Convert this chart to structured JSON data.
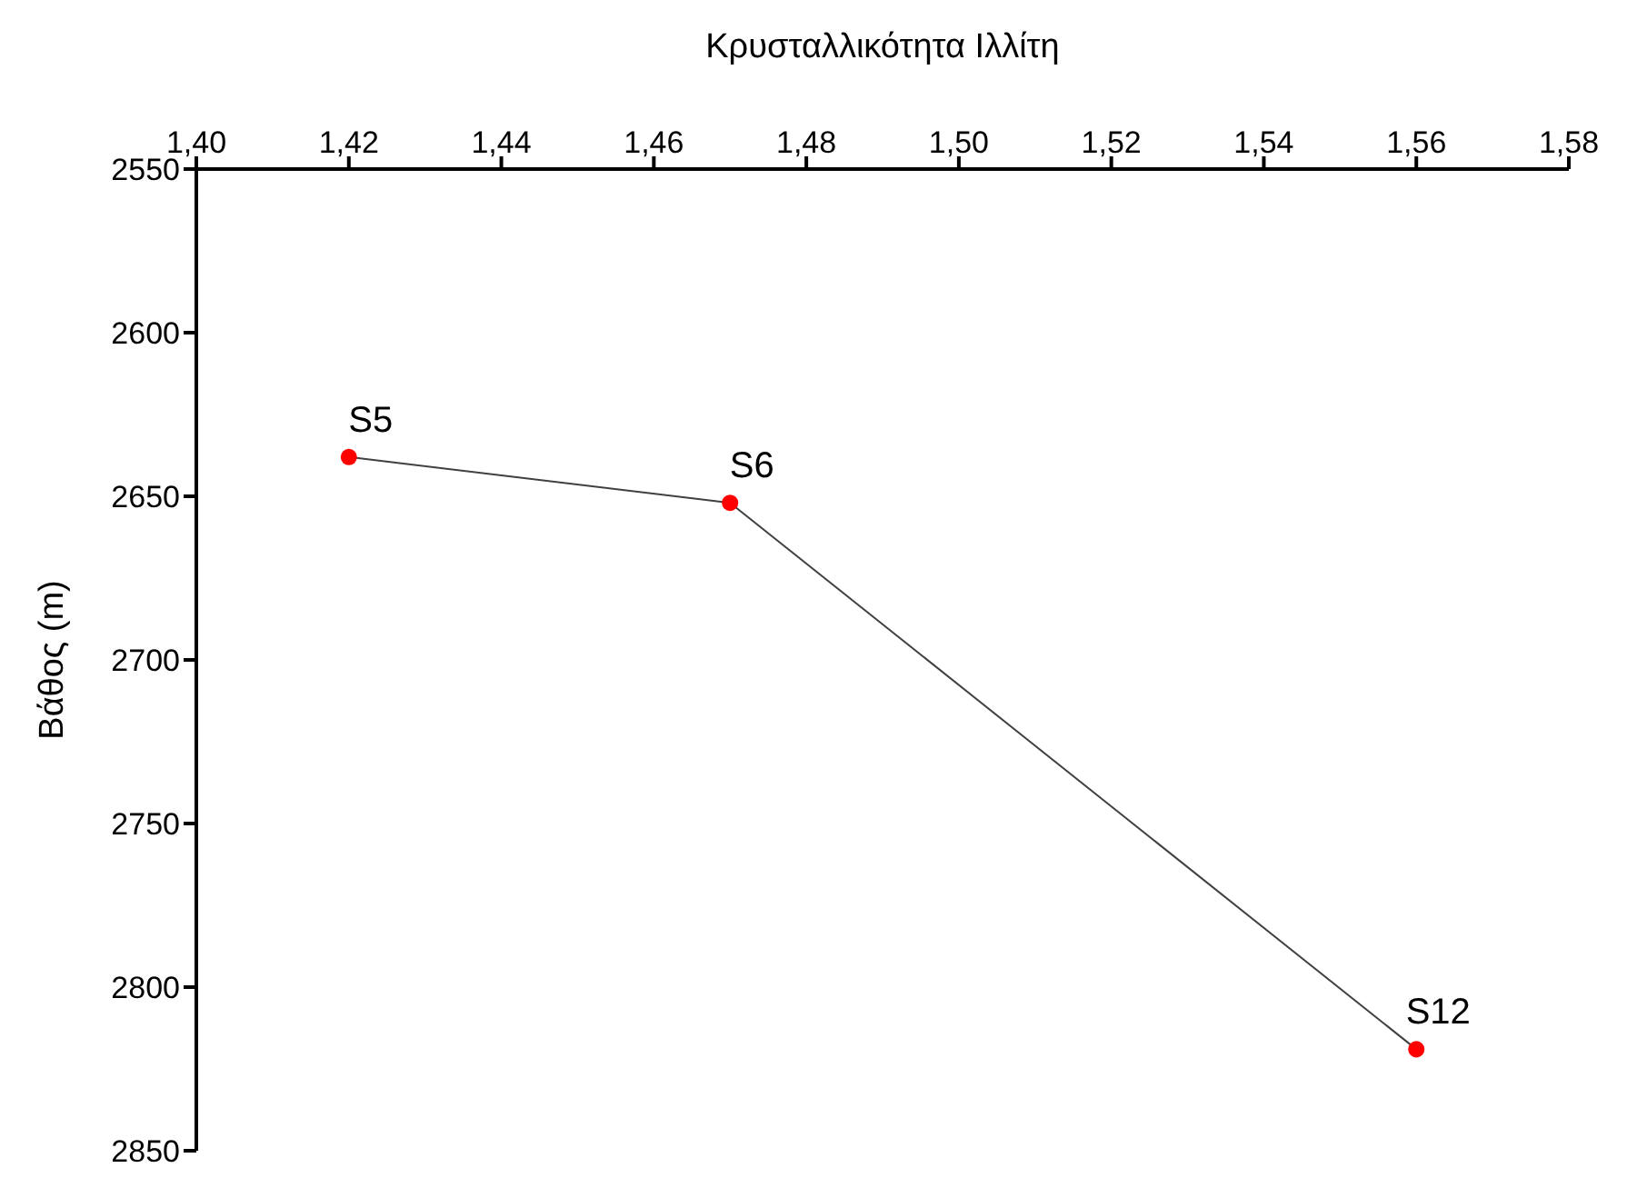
{
  "chart_data": {
    "type": "line",
    "xlabel": "Κρυσταλλικότητα Ιλλίτη",
    "ylabel": "Βάθος (m)",
    "x": [
      1.42,
      1.47,
      1.56
    ],
    "series": [
      {
        "color": "#404040",
        "values": [
          2638,
          2652,
          2819
        ],
        "marker": "none"
      },
      {
        "type": "scatter",
        "color": "#ff0000",
        "values": [
          2638,
          2652,
          2819
        ],
        "marker": "circle"
      }
    ],
    "xlim": [
      1.4,
      1.58
    ],
    "xticks": [
      {
        "value": 1.4,
        "label": "1,40"
      },
      {
        "value": 1.42,
        "label": "1,42"
      },
      {
        "value": 1.44,
        "label": "1,44"
      },
      {
        "value": 1.46,
        "label": "1,46"
      },
      {
        "value": 1.48,
        "label": "1,48"
      },
      {
        "value": 1.5,
        "label": "1,50"
      },
      {
        "value": 1.52,
        "label": "1,52"
      },
      {
        "value": 1.54,
        "label": "1,54"
      },
      {
        "value": 1.56,
        "label": "1,56"
      },
      {
        "value": 1.58,
        "label": "1,58"
      }
    ],
    "ylim": [
      2850,
      2550
    ],
    "yticks": [
      2550,
      2600,
      2650,
      2700,
      2750,
      2800,
      2850
    ],
    "annotations": [
      {
        "text": "S5",
        "x": 1.42,
        "y": 2638
      },
      {
        "text": "S6",
        "x": 1.47,
        "y": 2652
      },
      {
        "text": "S12",
        "x": 1.56,
        "y": 2819
      }
    ],
    "grid": false
  }
}
